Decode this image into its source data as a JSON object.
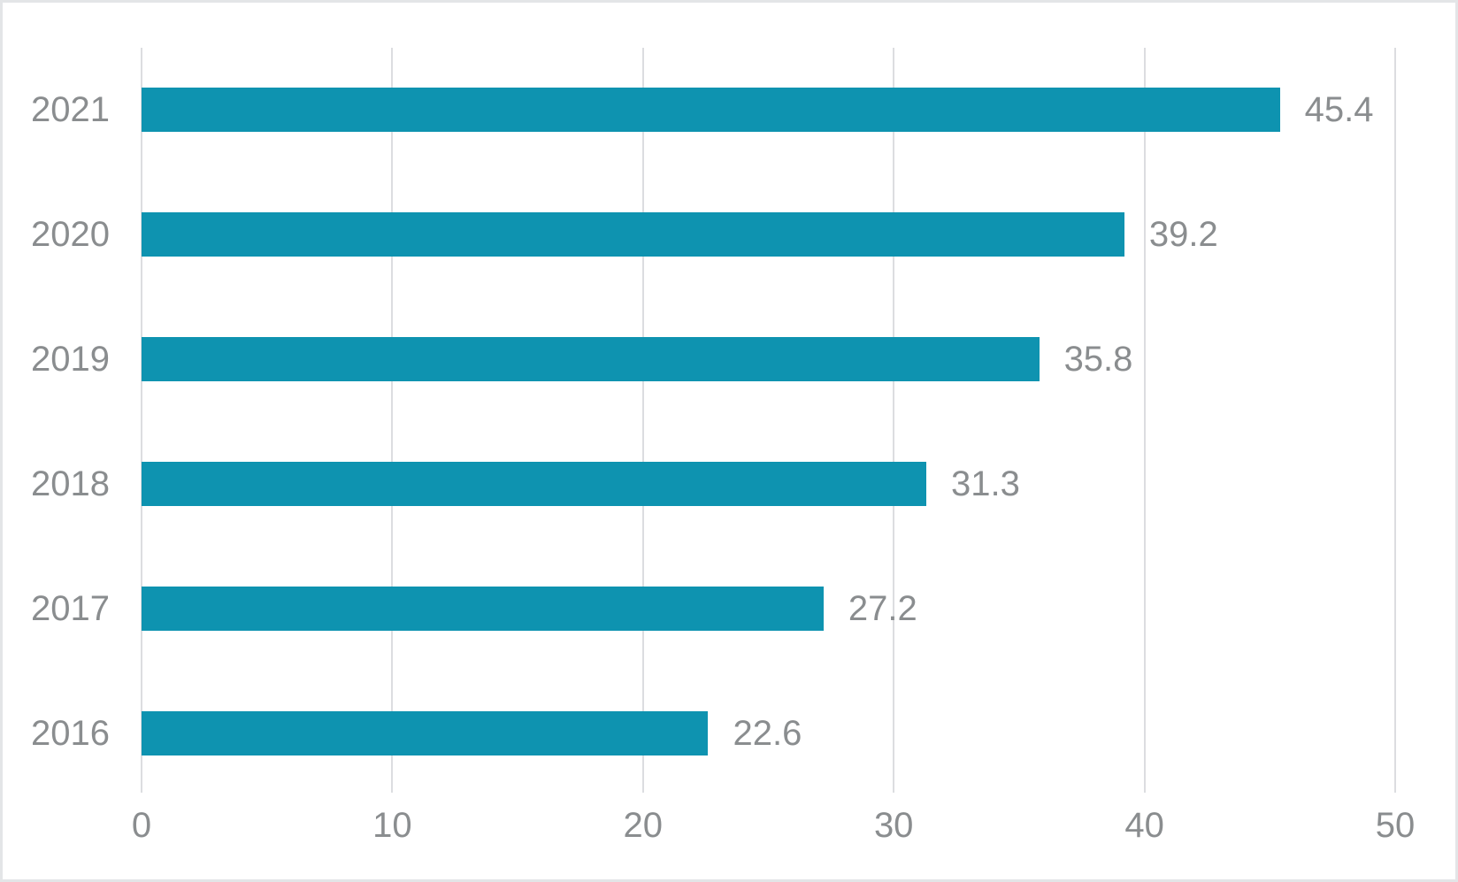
{
  "chart_data": {
    "type": "bar",
    "orientation": "horizontal",
    "title": "",
    "xlabel": "",
    "ylabel": "",
    "categories": [
      "2021",
      "2020",
      "2019",
      "2018",
      "2017",
      "2016"
    ],
    "values": [
      45.4,
      39.2,
      35.8,
      31.3,
      27.2,
      22.6
    ],
    "value_labels": [
      "45.4",
      "39.2",
      "35.8",
      "31.3",
      "27.2",
      "22.6"
    ],
    "xlim": [
      0,
      50
    ],
    "xticks": [
      0,
      10,
      20,
      30,
      40,
      50
    ],
    "grid": "vertical-gridlines-on",
    "legend": "none",
    "colors": {
      "bar": "#0e93b0",
      "label_text": "#8a8d8f",
      "gridline": "#dcdde0",
      "frame_border": "#e3e5e7",
      "background": "#ffffff"
    }
  }
}
